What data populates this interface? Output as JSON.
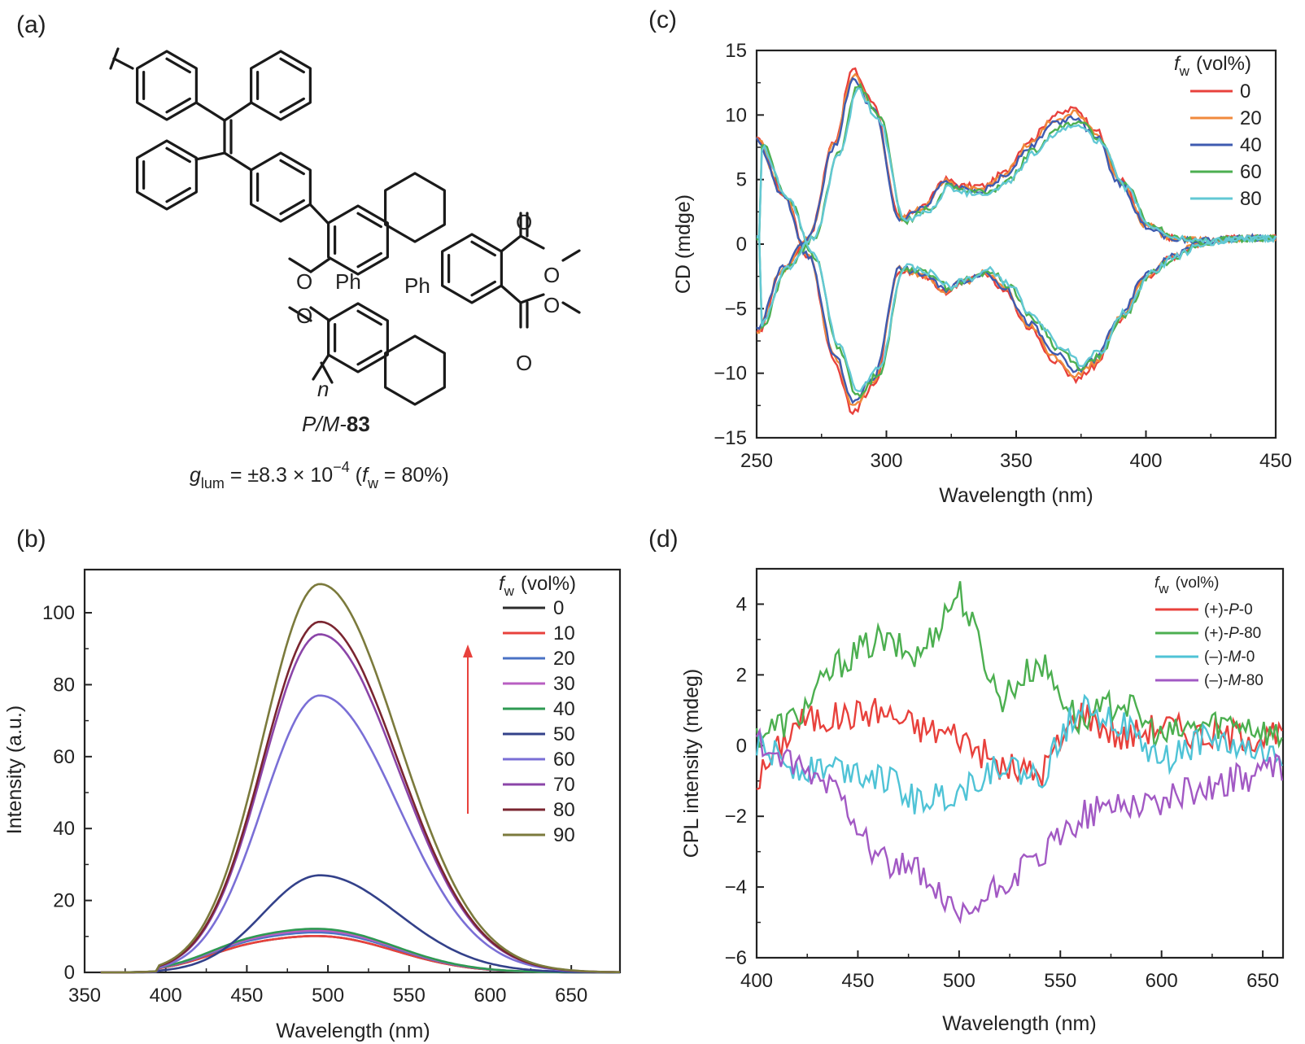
{
  "panels": {
    "a": "(a)",
    "b": "(b)",
    "c": "(c)",
    "d": "(d)"
  },
  "molecule": {
    "ph1": "Ph",
    "ph2": "Ph",
    "o_carbonyl": "O",
    "o_ester": "O",
    "o_methoxy": "O",
    "n": "n",
    "name_prefix": "P/M-",
    "name_number": "83",
    "glum_symbol": "g",
    "glum_sub": "lum",
    "glum_value": " = ±8.3 × 10",
    "glum_exp": "−4",
    "glum_open": " (",
    "glum_f": "f",
    "glum_fsub": "w",
    "glum_close": " = 80%)"
  },
  "chart_data": [
    {
      "panel": "(b)",
      "type": "line",
      "xlabel": "Wavelength (nm)",
      "ylabel": "Intensity (a.u.)",
      "xlim": [
        350,
        680
      ],
      "ylim": [
        0,
        112
      ],
      "xticks": [
        350,
        400,
        450,
        500,
        550,
        600,
        650
      ],
      "yticks": [
        0,
        20,
        40,
        60,
        80,
        100
      ],
      "legend_title": "f",
      "legend_title_sub": "w",
      "legend_title_unit": "(vol%)",
      "legend_position": "top-right",
      "arrow": "increasing",
      "series": [
        {
          "name": "0",
          "color": "#2b2b2b",
          "peak": 10
        },
        {
          "name": "10",
          "color": "#e8413c",
          "peak": 10
        },
        {
          "name": "20",
          "color": "#4a72c4",
          "peak": 11
        },
        {
          "name": "30",
          "color": "#b85fc2",
          "peak": 11.5
        },
        {
          "name": "40",
          "color": "#2e9a52",
          "peak": 12
        },
        {
          "name": "50",
          "color": "#33418a",
          "peak": 27
        },
        {
          "name": "60",
          "color": "#7a6fd6",
          "peak": 77
        },
        {
          "name": "70",
          "color": "#8b45a8",
          "peak": 94
        },
        {
          "name": "80",
          "color": "#7a2530",
          "peak": 97.5
        },
        {
          "name": "90",
          "color": "#7b7a3c",
          "peak": 108
        }
      ],
      "peak_x": 495
    },
    {
      "panel": "(c)",
      "type": "line",
      "xlabel": "Wavelength (nm)",
      "ylabel": "CD (mdge)",
      "xlim": [
        250,
        450
      ],
      "ylim": [
        -15,
        15
      ],
      "xticks": [
        250,
        300,
        350,
        400,
        450
      ],
      "yticks": [
        -15,
        -10,
        -5,
        0,
        5,
        10,
        15
      ],
      "ytick_labels": [
        "−15",
        "−10",
        "−5",
        "0",
        "5",
        "10",
        "15"
      ],
      "legend_title": "f",
      "legend_title_sub": "w",
      "legend_title_unit": "(vol%)",
      "legend_position": "top-right",
      "series": [
        {
          "name": "0",
          "color": "#e8413c"
        },
        {
          "name": "20",
          "color": "#f08a3c"
        },
        {
          "name": "40",
          "color": "#3f5bb0"
        },
        {
          "name": "60",
          "color": "#4caf50"
        },
        {
          "name": "80",
          "color": "#62c8d4"
        }
      ],
      "x": [
        250,
        260,
        270,
        280,
        287,
        295,
        305,
        315,
        322,
        330,
        338,
        345,
        355,
        365,
        373,
        380,
        390,
        400,
        410,
        420,
        430,
        440,
        450
      ],
      "positive_enantiomer": [
        -7,
        -2,
        0.5,
        8,
        13.5,
        11,
        2,
        3,
        5,
        4.5,
        4.5,
        5.5,
        8,
        10,
        10.5,
        9,
        5,
        1.5,
        0.5,
        0.3,
        0.4,
        0.5,
        0.5
      ],
      "negative_enantiomer": [
        8.5,
        4,
        -1,
        -9,
        -13,
        -11,
        -2,
        -2.5,
        -3.7,
        -3,
        -2.3,
        -3.5,
        -6.5,
        -9,
        -10.5,
        -9.5,
        -6,
        -2.5,
        -1,
        0,
        0.4,
        0.5,
        0.5
      ]
    },
    {
      "panel": "(d)",
      "type": "line",
      "xlabel": "Wavelength (nm)",
      "ylabel": "CPL intensity (mdeg)",
      "xlim": [
        400,
        660
      ],
      "ylim": [
        -6,
        5
      ],
      "xticks": [
        400,
        450,
        500,
        550,
        600,
        650
      ],
      "yticks": [
        -6,
        -4,
        -2,
        0,
        2,
        4
      ],
      "ytick_labels": [
        "−6",
        "−4",
        "−2",
        "0",
        "2",
        "4"
      ],
      "legend_title": "f",
      "legend_title_sub": "w",
      "legend_title_unit": "(vol%)",
      "legend_position": "top-right",
      "series": [
        {
          "name": "(+)-P-0",
          "label_sign": "(+)-",
          "label_enant": "P",
          "label_fw": "-0",
          "color": "#e8413c"
        },
        {
          "name": "(+)-P-80",
          "label_sign": "(+)-",
          "label_enant": "P",
          "label_fw": "-80",
          "color": "#4caf50"
        },
        {
          "name": "(–)-M-0",
          "label_sign": "(–)-",
          "label_enant": "M",
          "label_fw": "-0",
          "color": "#4fc3d6"
        },
        {
          "name": "(–)-M-80",
          "label_sign": "(–)-",
          "label_enant": "M",
          "label_fw": "-80",
          "color": "#a259c4"
        }
      ],
      "x": [
        400,
        420,
        440,
        460,
        480,
        500,
        520,
        540,
        560,
        580,
        600,
        620,
        640,
        660
      ],
      "values": {
        "(+)-P-0": [
          -1.0,
          0.7,
          0.8,
          1.0,
          0.5,
          0.3,
          -0.6,
          -0.8,
          1.0,
          0.2,
          0.6,
          0.3,
          0.3,
          0.2
        ],
        "(+)-P-80": [
          0.3,
          0.8,
          2.3,
          3.0,
          2.5,
          4.4,
          1.3,
          2.4,
          0.6,
          1.3,
          0.2,
          0.6,
          0.7,
          0.2
        ],
        "(–)-M-0": [
          0.0,
          -0.6,
          -0.6,
          -0.8,
          -1.6,
          -1.3,
          -0.5,
          -1.0,
          1.3,
          0.6,
          -0.5,
          0.2,
          -0.1,
          -0.4
        ],
        "(–)-M-80": [
          0.1,
          -0.7,
          -1.2,
          -3.2,
          -3.6,
          -5.0,
          -4.0,
          -3.2,
          -2.0,
          -1.6,
          -1.6,
          -1.2,
          -0.9,
          -0.6
        ]
      }
    }
  ]
}
